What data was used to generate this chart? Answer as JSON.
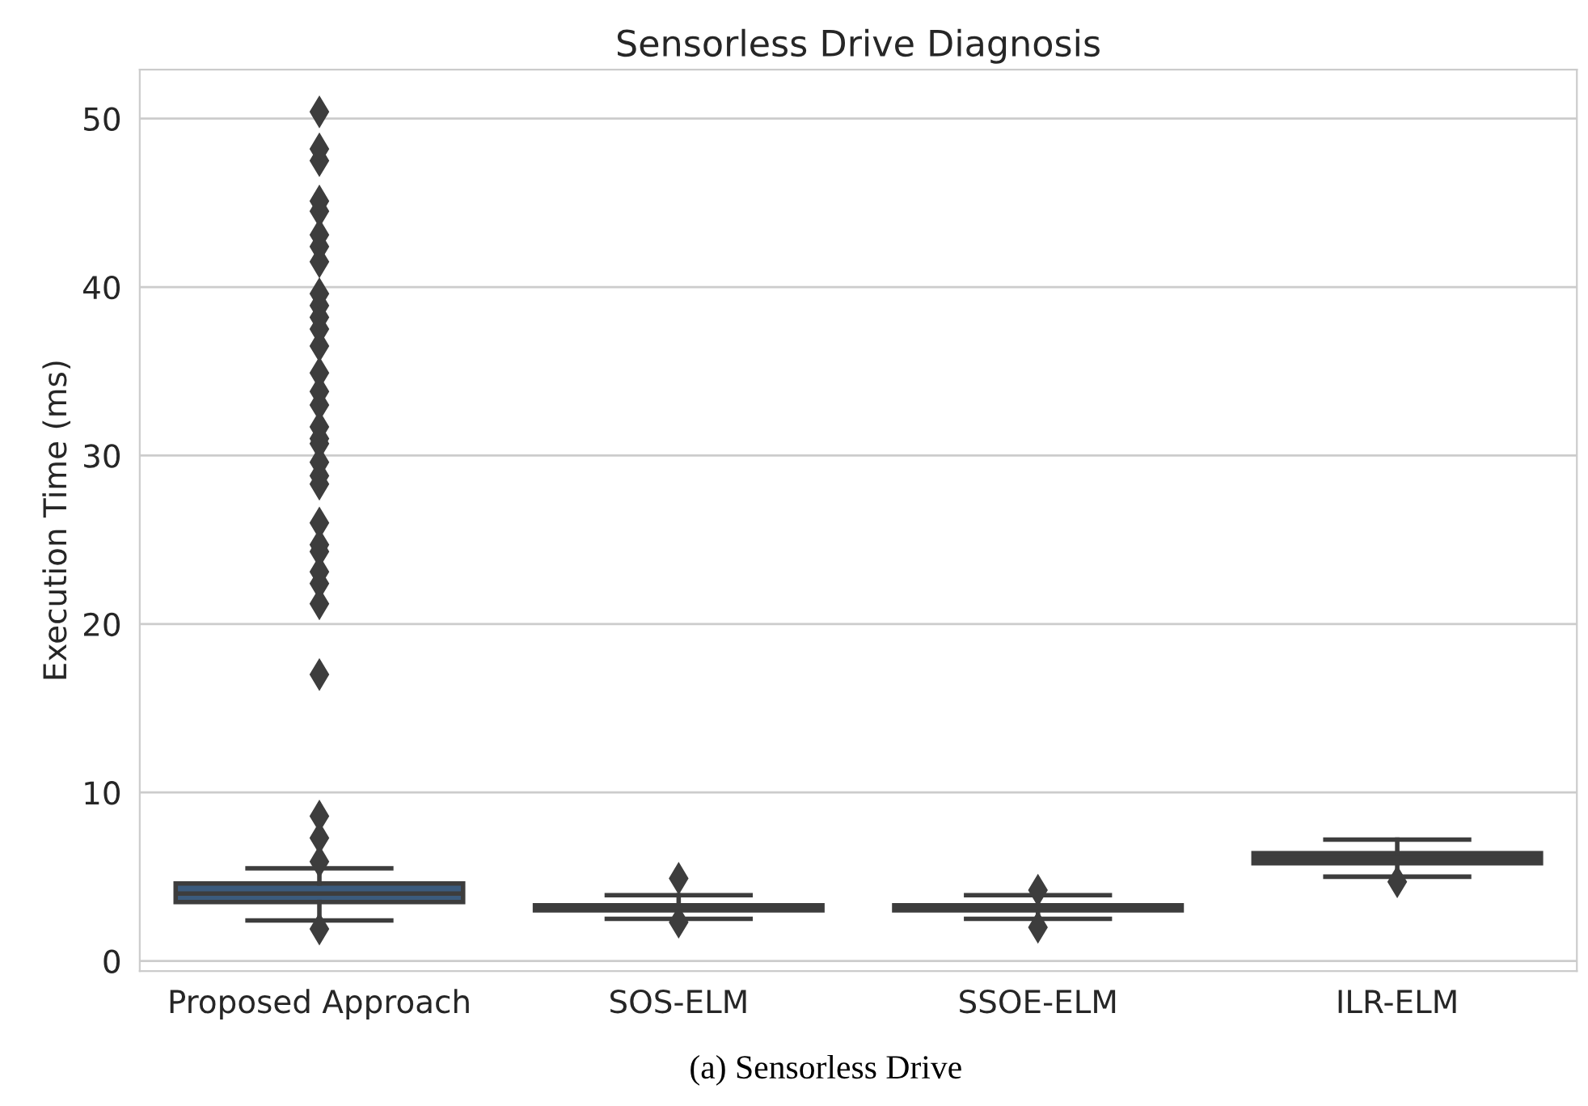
{
  "chart_data": {
    "type": "box",
    "title": "Sensorless Drive Diagnosis",
    "ylabel": "Execution Time (ms)",
    "categories": [
      "Proposed Approach",
      "SOS-ELM",
      "SSOE-ELM",
      "ILR-ELM"
    ],
    "boxes": [
      {
        "low": 2.4,
        "q1": 3.5,
        "median": 4.0,
        "q3": 4.6,
        "high": 5.5,
        "outliers": [
          1.9,
          5.9,
          7.3,
          8.6,
          17.0,
          21.2,
          22.4,
          23.1,
          24.3,
          24.7,
          26.0,
          28.3,
          28.8,
          29.6,
          30.7,
          31.0,
          31.7,
          33.0,
          33.8,
          34.9,
          36.5,
          37.5,
          38.2,
          38.9,
          39.6,
          41.5,
          42.4,
          43.1,
          44.5,
          45.1,
          47.5,
          48.2,
          50.4
        ]
      },
      {
        "low": 2.5,
        "q1": 3.0,
        "median": 3.2,
        "q3": 3.3,
        "high": 3.9,
        "outliers": [
          2.3,
          4.9
        ]
      },
      {
        "low": 2.5,
        "q1": 3.0,
        "median": 3.2,
        "q3": 3.3,
        "high": 3.9,
        "outliers": [
          2.0,
          4.2
        ]
      },
      {
        "low": 5.0,
        "q1": 5.8,
        "median": 6.1,
        "q3": 6.4,
        "high": 7.2,
        "outliers": [
          4.7
        ]
      }
    ],
    "colors": [
      "#3b5b7d",
      "#3d3d3d",
      "#3d3d3d",
      "#3d3d3d"
    ],
    "ylim": [
      -0.6,
      52.9
    ],
    "yticks": [
      0,
      10,
      20,
      30,
      40,
      50
    ],
    "grid": "y",
    "marker": "diamond",
    "annotations": [
      "(a) Sensorless Drive"
    ]
  }
}
